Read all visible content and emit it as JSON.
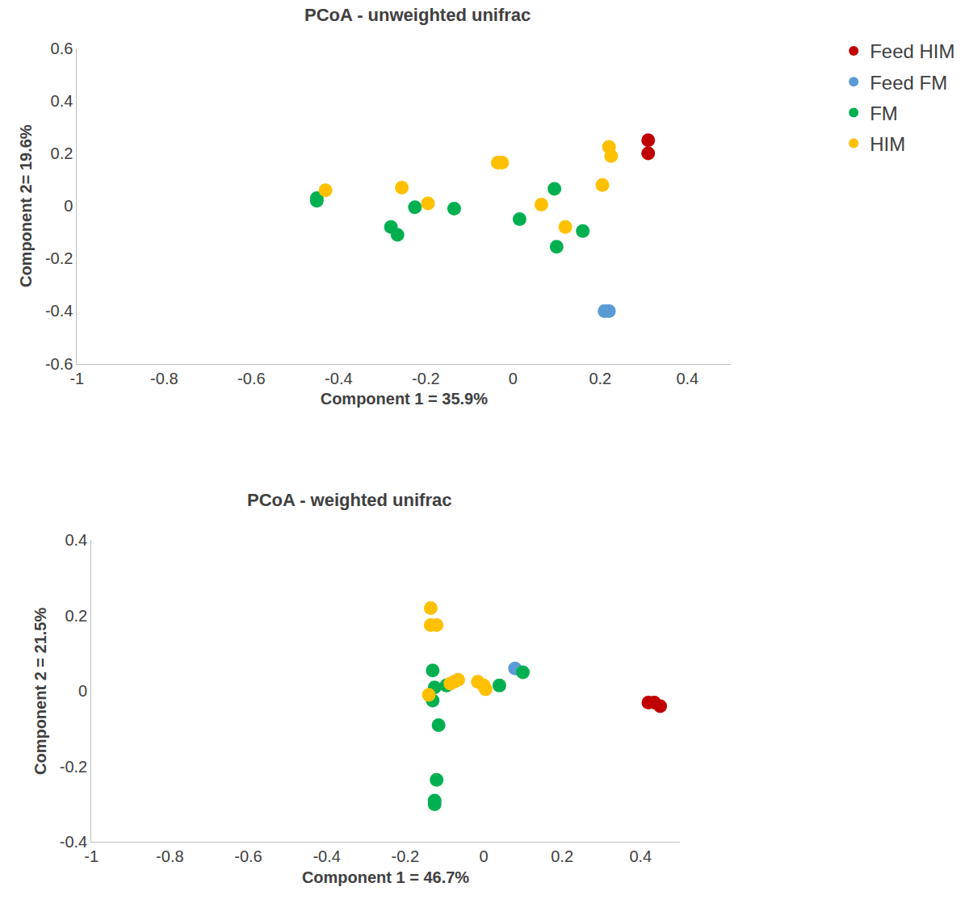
{
  "chart_data": [
    {
      "type": "scatter",
      "title": "PCoA - unweighted unifrac",
      "x_label": "Component 1 = 35.9%",
      "y_label": "Component 2= 19.6%",
      "xlim": [
        -1,
        0.5
      ],
      "ylim": [
        -0.6,
        0.6
      ],
      "xticks": [
        -1,
        -0.8,
        -0.6,
        -0.4,
        -0.2,
        0,
        0.2,
        0.4
      ],
      "yticks": [
        -0.6,
        -0.4,
        -0.2,
        0,
        0.2,
        0.4,
        0.6
      ],
      "grid": false,
      "legend": "top right",
      "series": [
        {
          "name": "Feed HIM",
          "color": "#c00000",
          "marker": "circle",
          "x": [
            0.31,
            0.31
          ],
          "y": [
            0.25,
            0.2
          ]
        },
        {
          "name": "Feed FM",
          "color": "#5b9bd5",
          "marker": "circle",
          "x": [
            0.21,
            0.22
          ],
          "y": [
            -0.4,
            -0.4
          ]
        },
        {
          "name": "FM",
          "color": "#00b050",
          "marker": "circle",
          "x": [
            -0.45,
            -0.45,
            -0.28,
            -0.265,
            -0.225,
            -0.135,
            0.015,
            0.095,
            0.1,
            0.16
          ],
          "y": [
            0.02,
            0.03,
            -0.08,
            -0.11,
            -0.005,
            -0.01,
            -0.05,
            0.065,
            -0.155,
            -0.095
          ]
        },
        {
          "name": "HIM",
          "color": "#ffc000",
          "marker": "circle",
          "x": [
            -0.43,
            -0.255,
            -0.195,
            -0.035,
            -0.025,
            0.065,
            0.12,
            0.205,
            0.22,
            0.225
          ],
          "y": [
            0.06,
            0.07,
            0.01,
            0.165,
            0.165,
            0.005,
            -0.08,
            0.08,
            0.225,
            0.19
          ]
        }
      ]
    },
    {
      "type": "scatter",
      "title": "PCoA - weighted unifrac",
      "x_label": "Component 1 = 46.7%",
      "y_label": "Component 2 = 21.5%",
      "xlim": [
        -1,
        0.5
      ],
      "ylim": [
        -0.4,
        0.4
      ],
      "xticks": [
        -1,
        -0.8,
        -0.6,
        -0.4,
        -0.2,
        0,
        0.2,
        0.4
      ],
      "yticks": [
        -0.4,
        -0.2,
        0,
        0.2,
        0.4
      ],
      "grid": false,
      "series": [
        {
          "name": "Feed HIM",
          "color": "#c00000",
          "marker": "circle",
          "x": [
            0.42,
            0.435,
            0.45
          ],
          "y": [
            -0.03,
            -0.03,
            -0.04
          ]
        },
        {
          "name": "Feed FM",
          "color": "#5b9bd5",
          "marker": "circle",
          "x": [
            0.08
          ],
          "y": [
            0.06
          ]
        },
        {
          "name": "FM",
          "color": "#00b050",
          "marker": "circle",
          "x": [
            -0.13,
            -0.125,
            -0.13,
            -0.115,
            -0.12,
            -0.125,
            -0.125,
            -0.095,
            0.04,
            0.1
          ],
          "y": [
            0.055,
            0.01,
            -0.025,
            -0.09,
            -0.235,
            -0.29,
            -0.3,
            0.015,
            0.015,
            0.05
          ]
        },
        {
          "name": "HIM",
          "color": "#ffc000",
          "marker": "circle",
          "x": [
            -0.135,
            -0.135,
            -0.12,
            -0.14,
            -0.085,
            -0.075,
            -0.065,
            -0.015,
            0.0,
            0.005
          ],
          "y": [
            0.22,
            0.175,
            0.175,
            -0.01,
            0.02,
            0.025,
            0.03,
            0.025,
            0.015,
            0.005
          ]
        }
      ]
    }
  ]
}
